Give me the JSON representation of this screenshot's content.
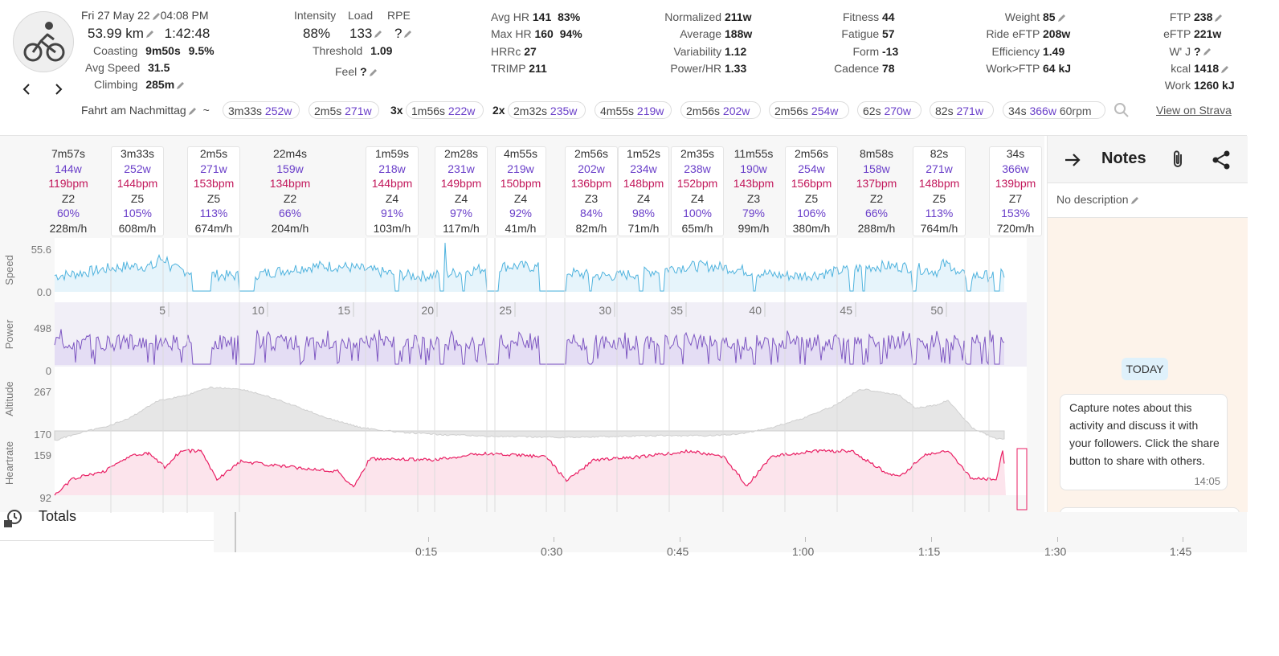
{
  "activity": {
    "date": "Fri 27 May 22",
    "time": "04:08 PM",
    "distance": "53.99 km",
    "duration": "1:42:48",
    "coasting_label": "Coasting",
    "coasting_time": "9m50s",
    "coasting_pct": "9.5%",
    "avg_speed_label": "Avg Speed",
    "avg_speed": "31.5",
    "climbing_label": "Climbing",
    "climbing": "285m",
    "name": "Fahrt am Nachmittag",
    "tilde": "~"
  },
  "load": {
    "intensity_label": "Intensity",
    "load_label": "Load",
    "rpe_label": "RPE",
    "intensity": "88%",
    "load": "133",
    "rpe": "?",
    "threshold_label": "Threshold",
    "threshold": "1.09",
    "feel_label": "Feel",
    "feel": "?"
  },
  "hr": [
    {
      "label": "Avg HR",
      "value": "141",
      "pct": "83%"
    },
    {
      "label": "Max HR",
      "value": "160",
      "pct": "94%"
    },
    {
      "label": "HRRc",
      "value": "27",
      "pct": ""
    },
    {
      "label": "TRIMP",
      "value": "211",
      "pct": ""
    }
  ],
  "power": [
    {
      "label": "Normalized",
      "value": "211w"
    },
    {
      "label": "Average",
      "value": "188w"
    },
    {
      "label": "Variability",
      "value": "1.12"
    },
    {
      "label": "Power/HR",
      "value": "1.33"
    }
  ],
  "fitness": [
    {
      "label": "Fitness",
      "value": "44"
    },
    {
      "label": "Fatigue",
      "value": "57"
    },
    {
      "label": "Form",
      "value": "-13"
    },
    {
      "label": "Cadence",
      "value": "78"
    }
  ],
  "weight": [
    {
      "label": "Weight",
      "value": "85"
    },
    {
      "label": "Ride eFTP",
      "value": "208w"
    },
    {
      "label": "Efficiency",
      "value": "1.49"
    },
    {
      "label": "Work>FTP",
      "value": "64 kJ"
    }
  ],
  "ftp": [
    {
      "label": "FTP",
      "value": "238"
    },
    {
      "label": "eFTP",
      "value": "221w"
    },
    {
      "label": "W' J",
      "value": "?"
    },
    {
      "label": "kcal",
      "value": "1418"
    },
    {
      "label": "Work",
      "value": "1260 kJ"
    }
  ],
  "efforts": [
    {
      "dur": "3m33s",
      "w": "252w"
    },
    {
      "dur": "2m5s",
      "w": "271w"
    },
    {
      "rep": "3x",
      "dur": "1m56s",
      "w": "222w"
    },
    {
      "rep": "2x",
      "dur": "2m32s",
      "w": "235w"
    },
    {
      "dur": "4m55s",
      "w": "219w"
    },
    {
      "dur": "2m56s",
      "w": "202w"
    },
    {
      "dur": "2m56s",
      "w": "254w"
    },
    {
      "dur": "62s",
      "w": "270w"
    },
    {
      "dur": "82s",
      "w": "271w"
    },
    {
      "dur": "34s",
      "w": "366w",
      "rpm": "60rpm"
    }
  ],
  "strava_link": "View on Strava",
  "intervals": [
    {
      "dur": "7m57s",
      "w": "144w",
      "bpm": "119bpm",
      "zone": "Z2",
      "pct": "60%",
      "climb": "228m/h",
      "boxed": false
    },
    {
      "dur": "3m33s",
      "w": "252w",
      "bpm": "144bpm",
      "zone": "Z5",
      "pct": "105%",
      "climb": "608m/h",
      "boxed": true
    },
    {
      "dur": "2m5s",
      "w": "271w",
      "bpm": "153bpm",
      "zone": "Z5",
      "pct": "113%",
      "climb": "674m/h",
      "boxed": true
    },
    {
      "dur": "22m4s",
      "w": "159w",
      "bpm": "134bpm",
      "zone": "Z2",
      "pct": "66%",
      "climb": "204m/h",
      "boxed": false
    },
    {
      "dur": "1m59s",
      "w": "218w",
      "bpm": "144bpm",
      "zone": "Z4",
      "pct": "91%",
      "climb": "103m/h",
      "boxed": true
    },
    {
      "dur": "2m28s",
      "w": "231w",
      "bpm": "149bpm",
      "zone": "Z4",
      "pct": "97%",
      "climb": "117m/h",
      "boxed": true
    },
    {
      "dur": "4m55s",
      "w": "219w",
      "bpm": "150bpm",
      "zone": "Z4",
      "pct": "92%",
      "climb": "41m/h",
      "boxed": true
    },
    {
      "dur": "2m56s",
      "w": "202w",
      "bpm": "136bpm",
      "zone": "Z3",
      "pct": "84%",
      "climb": "82m/h",
      "boxed": true
    },
    {
      "dur": "1m52s",
      "w": "234w",
      "bpm": "148bpm",
      "zone": "Z4",
      "pct": "98%",
      "climb": "71m/h",
      "boxed": true
    },
    {
      "dur": "2m35s",
      "w": "238w",
      "bpm": "152bpm",
      "zone": "Z4",
      "pct": "100%",
      "climb": "65m/h",
      "boxed": true
    },
    {
      "dur": "11m55s",
      "w": "190w",
      "bpm": "143bpm",
      "zone": "Z3",
      "pct": "79%",
      "climb": "99m/h",
      "boxed": false
    },
    {
      "dur": "2m56s",
      "w": "254w",
      "bpm": "156bpm",
      "zone": "Z5",
      "pct": "106%",
      "climb": "380m/h",
      "boxed": true
    },
    {
      "dur": "8m58s",
      "w": "158w",
      "bpm": "137bpm",
      "zone": "Z2",
      "pct": "66%",
      "climb": "288m/h",
      "boxed": false
    },
    {
      "dur": "82s",
      "w": "271w",
      "bpm": "148bpm",
      "zone": "Z5",
      "pct": "113%",
      "climb": "764m/h",
      "boxed": true
    },
    {
      "dur": "34s",
      "w": "366w",
      "bpm": "139bpm",
      "zone": "Z7",
      "pct": "153%",
      "climb": "720m/h",
      "boxed": true
    }
  ],
  "charts": {
    "speed": {
      "label": "Speed",
      "max": "55.6",
      "min": "0.0"
    },
    "power": {
      "label": "Power",
      "max": "498",
      "min": "0"
    },
    "altitude": {
      "label": "Altitude",
      "max": "267",
      "min": "170"
    },
    "heartrate": {
      "label": "Heartrate",
      "max": "159",
      "min": "92"
    },
    "distance_ticks": [
      "5",
      "10",
      "15",
      "20",
      "25",
      "30",
      "35",
      "40",
      "45",
      "50"
    ],
    "time_ticks": [
      "0:15",
      "0:30",
      "0:45",
      "1:00",
      "1:15",
      "1:30",
      "1:45"
    ]
  },
  "totals_label": "Totals",
  "notes": {
    "title": "Notes",
    "description": "No description",
    "today": "TODAY",
    "message": "Capture notes about this activity and discuss it with your followers. Click the share button to share with others.",
    "message_time": "14:05"
  },
  "colors": {
    "speed": "#4fb3de",
    "power": "#7e57c2",
    "altitude": "#cfcfcf",
    "heartrate": "#e91e63",
    "purple_text": "#6a3fc9",
    "bpm_text": "#c2185b"
  }
}
